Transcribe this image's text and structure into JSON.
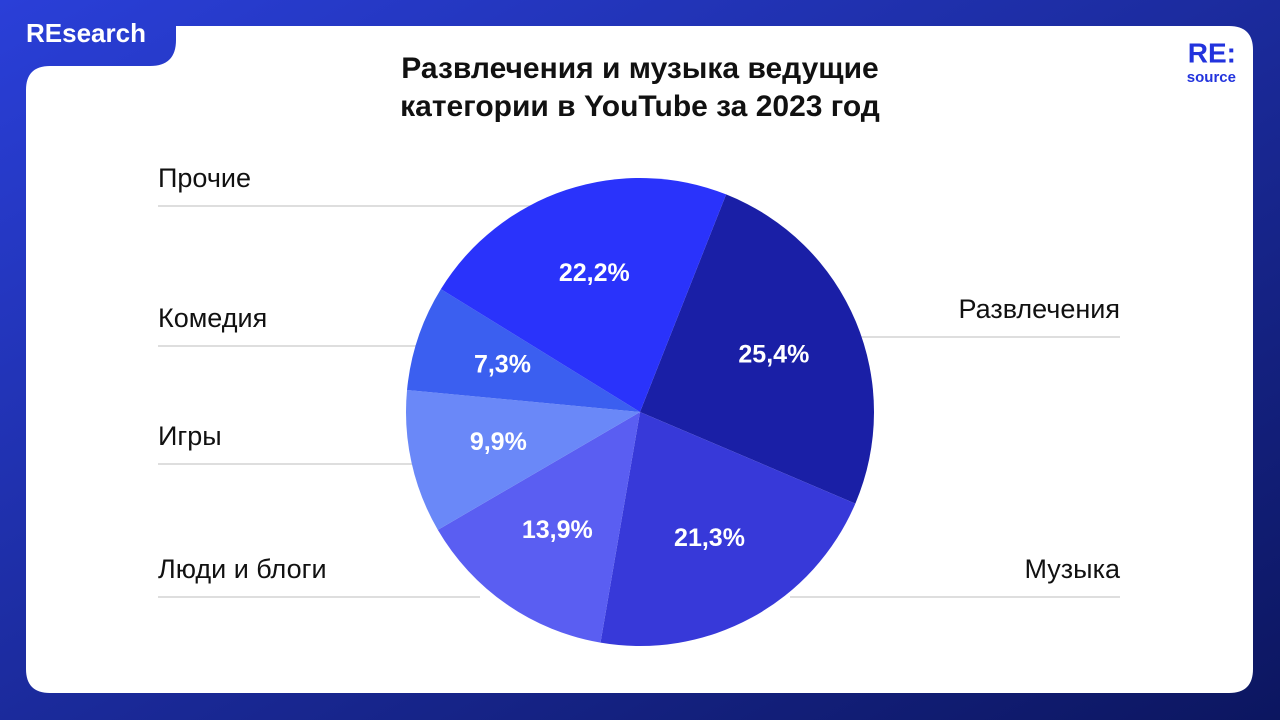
{
  "brand": "REsearch",
  "logo": {
    "main": "RE:",
    "sub": "source"
  },
  "chart_data": {
    "type": "pie",
    "title": "Развлечения и музыка ведущие категории в YouTube за 2023 год",
    "categories": [
      "Развлечения",
      "Музыка",
      "Люди и блоги",
      "Игры",
      "Комедия",
      "Прочие"
    ],
    "values": [
      25.4,
      21.3,
      13.9,
      9.9,
      7.3,
      22.2
    ],
    "value_labels": [
      "25,4%",
      "21,3%",
      "13,9%",
      "9,9%",
      "7,3%",
      "22,2%"
    ],
    "colors": [
      "#1a1fa6",
      "#3739d9",
      "#5a5ef2",
      "#6a88f8",
      "#3b5ff0",
      "#2a33fb"
    ]
  }
}
